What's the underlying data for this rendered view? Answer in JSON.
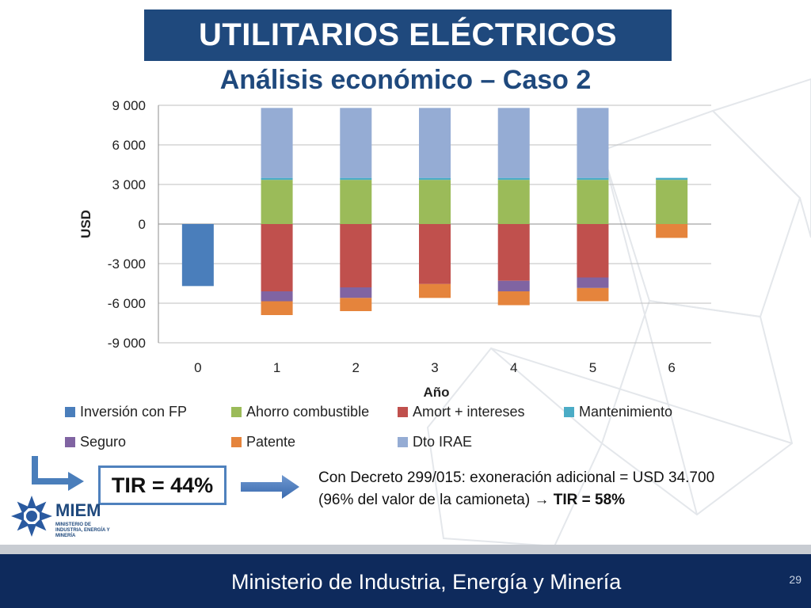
{
  "header": {
    "title": "UTILITARIOS ELÉCTRICOS",
    "subtitle": "Análisis económico – Caso 2"
  },
  "chart_data": {
    "type": "bar",
    "stacked": true,
    "categories": [
      "0",
      "1",
      "2",
      "3",
      "4",
      "5",
      "6"
    ],
    "xlabel": "Año",
    "ylabel": "USD",
    "ylim": [
      -9000,
      9000
    ],
    "yticks": [
      9000,
      6000,
      3000,
      0,
      -3000,
      -6000,
      -9000
    ],
    "ytick_labels": [
      "9 000",
      "6 000",
      "3 000",
      "0",
      "-3 000",
      "-6 000",
      "-9 000"
    ],
    "grid": true,
    "legend_position": "bottom",
    "series": [
      {
        "name": "Inversión con FP",
        "color": "#4a7ebb",
        "values": [
          -4700,
          0,
          0,
          0,
          0,
          0,
          0
        ]
      },
      {
        "name": "Ahorro combustible",
        "color": "#9bbb59",
        "values": [
          0,
          3350,
          3350,
          3350,
          3350,
          3350,
          3350
        ]
      },
      {
        "name": "Amort + intereses",
        "color": "#c0504d",
        "values": [
          0,
          -5100,
          -4800,
          -4550,
          -4300,
          -4050,
          0
        ]
      },
      {
        "name": "Mantenimiento",
        "color": "#4bacc6",
        "values": [
          0,
          150,
          150,
          150,
          150,
          150,
          150
        ]
      },
      {
        "name": "Seguro",
        "color": "#8064a2",
        "values": [
          0,
          -750,
          -800,
          0,
          -800,
          -800,
          0
        ]
      },
      {
        "name": "Patente",
        "color": "#e5843c",
        "values": [
          0,
          -1050,
          -1000,
          -1050,
          -1050,
          -1000,
          -1050
        ]
      },
      {
        "name": "Dto IRAE",
        "color": "#95acd4",
        "values": [
          0,
          5300,
          5300,
          5300,
          5300,
          5300,
          0
        ]
      }
    ]
  },
  "tir": {
    "label": "TIR = 44%"
  },
  "note": {
    "line1": "Con Decreto 299/015: exoneración adicional = USD 34.700",
    "line2_prefix": "(96% del valor de la camioneta) ",
    "arrow": "→",
    "line2_tir": "TIR = 58%"
  },
  "logo": {
    "name": "MIEM",
    "subtitle": "MINISTERIO DE INDUSTRIA, ENERGÍA Y MINERÍA"
  },
  "footer": {
    "text": "Ministerio de Industria, Energía y Minería",
    "page_number": "29"
  }
}
